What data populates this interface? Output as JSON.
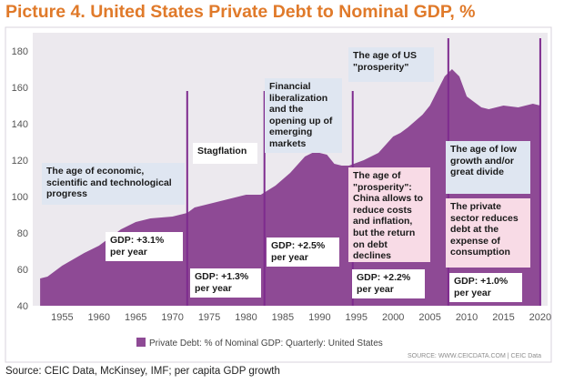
{
  "title": "Picture 4. United States Private Debt to Nominal GDP, %",
  "source_note": "Source: CEIC Data, McKinsey, IMF; per capita GDP growth",
  "chart_source_label": "SOURCE: WWW.CEICDATA.COM | CEIC Data",
  "colors": {
    "title": "#e07a2a",
    "area_fill": "#8e4a95",
    "plot_background": "#ece9ee",
    "blue_box": "#dfe6f1",
    "pink_box": "#f8dbe6",
    "divider_line": "#7e2b8e"
  },
  "annotations": {
    "era1": "The age of economic, scientific and technological progress",
    "stagflation": "Stagflation",
    "financial": "Financial liberalization and the opening up of emerging markets",
    "us_prosperity": "The age of US \"prosperity\"",
    "china": "The age of \"prosperity\": China allows to reduce costs and inflation, but the return on debt declines",
    "low_growth": "The age of low growth and/or great divide",
    "private_sector": "The private sector reduces debt at the expense of consumption",
    "gdp1": "GDP: +3.1% per year",
    "gdp2": "GDP: +1.3% per year",
    "gdp3": "GDP: +2.5% per year",
    "gdp4": "GDP: +2.2% per year",
    "gdp5": "GDP: +1.0% per year"
  },
  "chart_data": {
    "type": "area",
    "title": "Picture 4. United States Private Debt to Nominal GDP, %",
    "series": [
      {
        "name": "Private Debt: % of Nominal GDP: Quarterly: United States",
        "x": [
          1952,
          1953,
          1955,
          1958,
          1960,
          1963,
          1965,
          1967,
          1970,
          1972,
          1973,
          1975,
          1978,
          1980,
          1981,
          1982,
          1984,
          1986,
          1988,
          1989,
          1990,
          1991,
          1992,
          1993,
          1994,
          1996,
          1998,
          2000,
          2001,
          2002,
          2004,
          2005,
          2006,
          2007,
          2008,
          2009,
          2010,
          2011,
          2012,
          2013,
          2015,
          2017,
          2019,
          2020
        ],
        "values": [
          55,
          56,
          62,
          69,
          73,
          82,
          86,
          88,
          89,
          91,
          94,
          96,
          99,
          101,
          101,
          101,
          106,
          113,
          122,
          124,
          124,
          123,
          118,
          117,
          117,
          120,
          124,
          133,
          135,
          138,
          145,
          150,
          158,
          166,
          170,
          166,
          155,
          152,
          149,
          148,
          150,
          149,
          151,
          150
        ]
      }
    ],
    "x_ticks": [
      1955,
      1960,
      1965,
      1970,
      1975,
      1980,
      1985,
      1990,
      1995,
      2000,
      2005,
      2010,
      2015,
      2020
    ],
    "y_ticks": [
      40,
      60,
      80,
      100,
      120,
      140,
      160,
      180
    ],
    "xlim": [
      1951,
      2021
    ],
    "ylim": [
      40,
      190
    ],
    "era_dividers": [
      1972,
      1982.5,
      1994.5,
      2007.5,
      2020
    ],
    "legend": "bottom-center",
    "grid": false
  }
}
